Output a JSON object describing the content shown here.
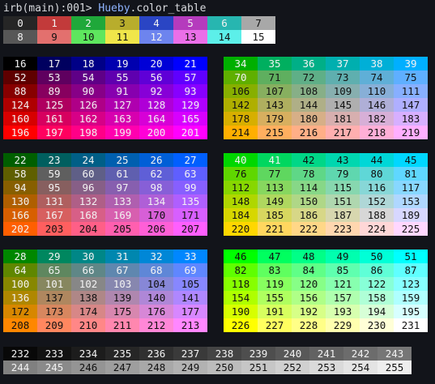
{
  "terminal": {
    "prompt": "irb(main):001> ",
    "receiver": "Hueby",
    "method": ".color_table"
  },
  "rows": {
    "basic_normal": [
      0,
      1,
      2,
      3,
      4,
      5,
      6,
      7
    ],
    "basic_bright": [
      8,
      9,
      10,
      11,
      12,
      13,
      14,
      15
    ],
    "cube_left_top": [
      [
        16,
        17,
        18,
        19,
        20,
        21
      ],
      [
        52,
        53,
        54,
        55,
        56,
        57
      ],
      [
        88,
        89,
        90,
        91,
        92,
        93
      ],
      [
        124,
        125,
        126,
        127,
        128,
        129
      ],
      [
        160,
        161,
        162,
        163,
        164,
        165
      ],
      [
        196,
        197,
        198,
        199,
        200,
        201
      ]
    ],
    "cube_right_top": [
      [
        34,
        35,
        36,
        37,
        38,
        39
      ],
      [
        70,
        71,
        72,
        73,
        74,
        75
      ],
      [
        106,
        107,
        108,
        109,
        110,
        111
      ],
      [
        142,
        143,
        144,
        145,
        146,
        147
      ],
      [
        178,
        179,
        180,
        181,
        182,
        183
      ],
      [
        214,
        215,
        216,
        217,
        218,
        219
      ]
    ],
    "cube_left_middle": [
      [
        22,
        23,
        24,
        25,
        26,
        27
      ],
      [
        58,
        59,
        60,
        61,
        62,
        63
      ],
      [
        94,
        95,
        96,
        97,
        98,
        99
      ],
      [
        130,
        131,
        132,
        133,
        134,
        135
      ],
      [
        166,
        167,
        168,
        169,
        170,
        171
      ],
      [
        202,
        203,
        204,
        205,
        206,
        207
      ]
    ],
    "cube_right_middle": [
      [
        40,
        41,
        42,
        43,
        44,
        45
      ],
      [
        76,
        77,
        78,
        79,
        80,
        81
      ],
      [
        112,
        113,
        114,
        115,
        116,
        117
      ],
      [
        148,
        149,
        150,
        151,
        152,
        153
      ],
      [
        184,
        185,
        186,
        187,
        188,
        189
      ],
      [
        220,
        221,
        222,
        223,
        224,
        225
      ]
    ],
    "cube_left_bottom": [
      [
        28,
        29,
        30,
        31,
        32,
        33
      ],
      [
        64,
        65,
        66,
        67,
        68,
        69
      ],
      [
        100,
        101,
        102,
        103,
        104,
        105
      ],
      [
        136,
        137,
        138,
        139,
        140,
        141
      ],
      [
        172,
        173,
        174,
        175,
        176,
        177
      ],
      [
        208,
        209,
        210,
        211,
        212,
        213
      ]
    ],
    "cube_right_bottom": [
      [
        46,
        47,
        48,
        49,
        50,
        51
      ],
      [
        82,
        83,
        84,
        85,
        86,
        87
      ],
      [
        118,
        119,
        120,
        121,
        122,
        123
      ],
      [
        154,
        155,
        156,
        157,
        158,
        159
      ],
      [
        190,
        191,
        192,
        193,
        194,
        195
      ],
      [
        226,
        227,
        228,
        229,
        230,
        231
      ]
    ],
    "gray_top": [
      232,
      233,
      234,
      235,
      236,
      237,
      238,
      239,
      240,
      241,
      242,
      243
    ],
    "gray_bottom": [
      244,
      245,
      246,
      247,
      248,
      249,
      250,
      251,
      252,
      253,
      254,
      255
    ]
  },
  "theme": {
    "background": "#12141a",
    "text": "#d8dade",
    "method_color": "#8fb4ff",
    "ansi16": [
      "#262626",
      "#c23a3a",
      "#1fa83a",
      "#b8ad2c",
      "#2a45c4",
      "#b53bbd",
      "#27b6b0",
      "#a8a8a8",
      "#575757",
      "#e3706e",
      "#5ee65e",
      "#f0e64a",
      "#6d84ee",
      "#ea6fe8",
      "#5cefe9",
      "#ffffff"
    ],
    "cube_levels": [
      0,
      95,
      135,
      175,
      215,
      255
    ]
  }
}
